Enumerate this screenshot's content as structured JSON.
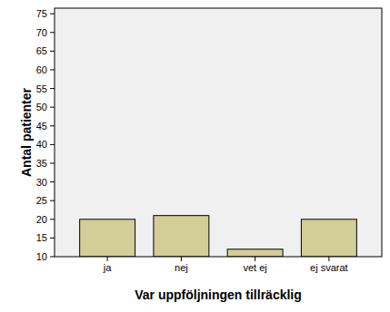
{
  "chart_data": {
    "type": "bar",
    "x_label": "Var uppföljningen tillräcklig",
    "y_label": "Antal patienter",
    "categories": [
      "ja",
      "nej",
      "vet ej",
      "ej svarat"
    ],
    "values": [
      20,
      21,
      12,
      20
    ],
    "color": "#d3ce97",
    "ylim": [
      10,
      76.5
    ],
    "yticks": [
      10,
      15,
      20,
      25,
      30,
      35,
      40,
      45,
      50,
      55,
      60,
      65,
      70,
      75
    ],
    "grid": false
  }
}
